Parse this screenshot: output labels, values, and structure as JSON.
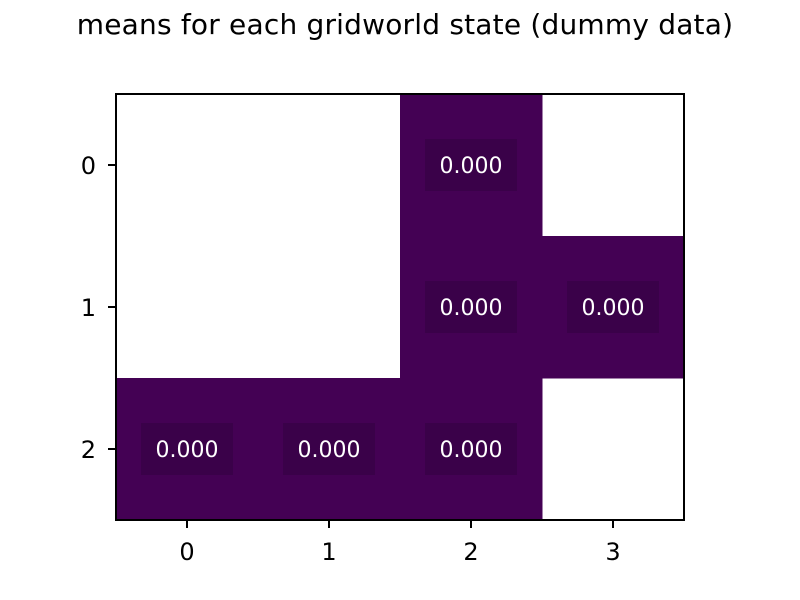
{
  "chart_data": {
    "type": "heatmap",
    "title": "means for each gridworld state (dummy data)",
    "xlabel": "",
    "ylabel": "",
    "x_ticks": [
      "0",
      "1",
      "2",
      "3"
    ],
    "y_ticks": [
      "0",
      "1",
      "2"
    ],
    "cells": [
      {
        "row": 0,
        "col": 2,
        "value": 0.0,
        "label": "0.000"
      },
      {
        "row": 1,
        "col": 2,
        "value": 0.0,
        "label": "0.000"
      },
      {
        "row": 1,
        "col": 3,
        "value": 0.0,
        "label": "0.000"
      },
      {
        "row": 2,
        "col": 0,
        "value": 0.0,
        "label": "0.000"
      },
      {
        "row": 2,
        "col": 1,
        "value": 0.0,
        "label": "0.000"
      },
      {
        "row": 2,
        "col": 2,
        "value": 0.0,
        "label": "0.000"
      }
    ],
    "colormap": "viridis",
    "cell_color": "#440154",
    "label_box_color": "#3a0149",
    "empty_cell_color": "#ffffff",
    "grid": false
  }
}
